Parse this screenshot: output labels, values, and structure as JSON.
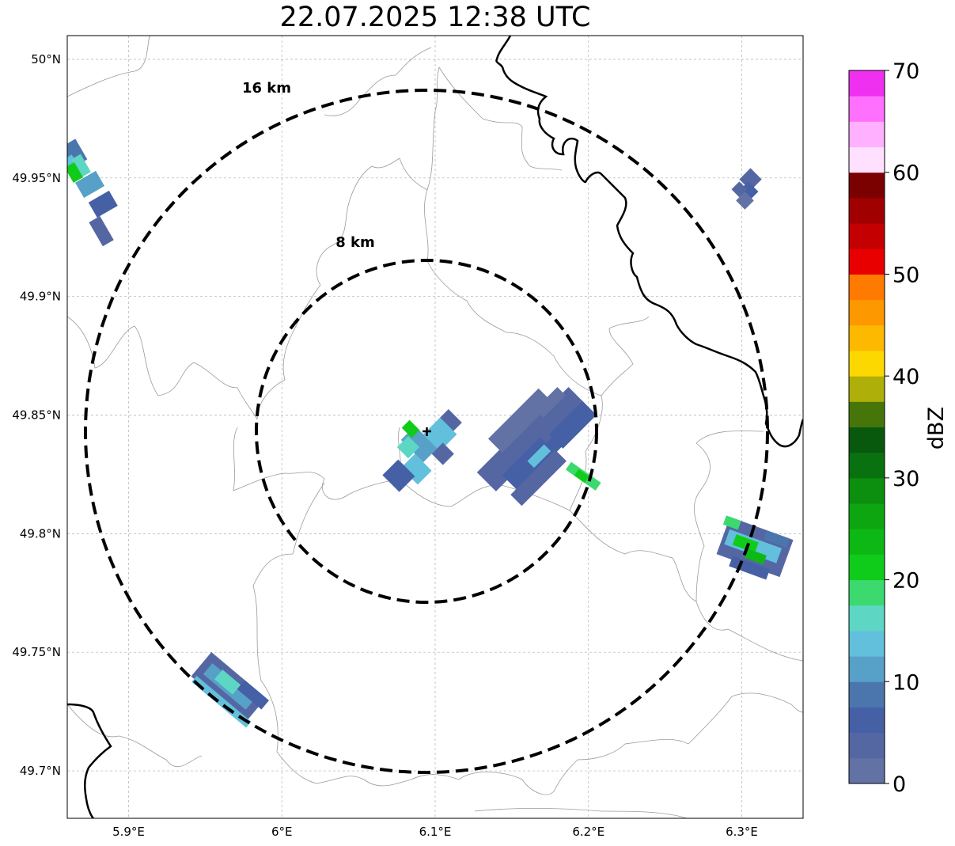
{
  "title": "22.07.2025 12:38 UTC",
  "map": {
    "lon_range": [
      5.86,
      6.34
    ],
    "lat_range": [
      49.68,
      50.01
    ],
    "lon_ticks": [
      {
        "value": 5.9,
        "label": "5.9°E"
      },
      {
        "value": 6.0,
        "label": "6°E"
      },
      {
        "value": 6.1,
        "label": "6.1°E"
      },
      {
        "value": 6.2,
        "label": "6.2°E"
      },
      {
        "value": 6.3,
        "label": "6.3°E"
      }
    ],
    "lat_ticks": [
      {
        "value": 50.0,
        "label": "50°N"
      },
      {
        "value": 49.95,
        "label": "49.95°N"
      },
      {
        "value": 49.9,
        "label": "49.9°N"
      },
      {
        "value": 49.85,
        "label": "49.85°N"
      },
      {
        "value": 49.8,
        "label": "49.8°N"
      },
      {
        "value": 49.75,
        "label": "49.75°N"
      },
      {
        "value": 49.7,
        "label": "49.7°N"
      }
    ],
    "grid": true,
    "radar_site": {
      "lon": 6.095,
      "lat": 49.844
    },
    "range_rings": [
      {
        "radius_km": 8,
        "label": "8 km"
      },
      {
        "radius_km": 16,
        "label": "16 km"
      }
    ]
  },
  "colorbar": {
    "label": "dBZ",
    "min": 0,
    "max": 70,
    "step": 2.5,
    "tick_labels": [
      "0",
      "10",
      "20",
      "30",
      "40",
      "50",
      "60",
      "70"
    ],
    "colors": [
      "#6272a4",
      "#5567a3",
      "#4660a5",
      "#4b76ad",
      "#57a0c8",
      "#62c0dc",
      "#5ed6c4",
      "#3cd96e",
      "#10cc1a",
      "#0eb814",
      "#0da611",
      "#0c8e0f",
      "#0a7110",
      "#08590e",
      "#46760a",
      "#aeaf08",
      "#fcd800",
      "#fdb800",
      "#fe9800",
      "#fe7a00",
      "#e80000",
      "#c40000",
      "#a10000",
      "#7b0000",
      "#ffe0ff",
      "#ffb0ff",
      "#ff70ff",
      "#f030f0"
    ]
  },
  "echo_cells": [
    {
      "lon": 6.095,
      "lat": 49.838,
      "dbz": 12
    },
    {
      "lon": 6.088,
      "lat": 49.843,
      "dbz": 22
    },
    {
      "lon": 6.09,
      "lat": 49.827,
      "dbz": 17
    },
    {
      "lon": 6.1,
      "lat": 49.82,
      "dbz": 5
    },
    {
      "lon": 6.15,
      "lat": 49.835,
      "dbz": 4
    },
    {
      "lon": 6.185,
      "lat": 49.848,
      "dbz": 5
    },
    {
      "lon": 6.2,
      "lat": 49.82,
      "dbz": 22
    },
    {
      "lon": 6.305,
      "lat": 49.945,
      "dbz": 5
    },
    {
      "lon": 6.305,
      "lat": 49.795,
      "dbz": 20
    },
    {
      "lon": 5.965,
      "lat": 49.737,
      "dbz": 15
    },
    {
      "lon": 5.868,
      "lat": 49.952,
      "dbz": 21
    }
  ]
}
